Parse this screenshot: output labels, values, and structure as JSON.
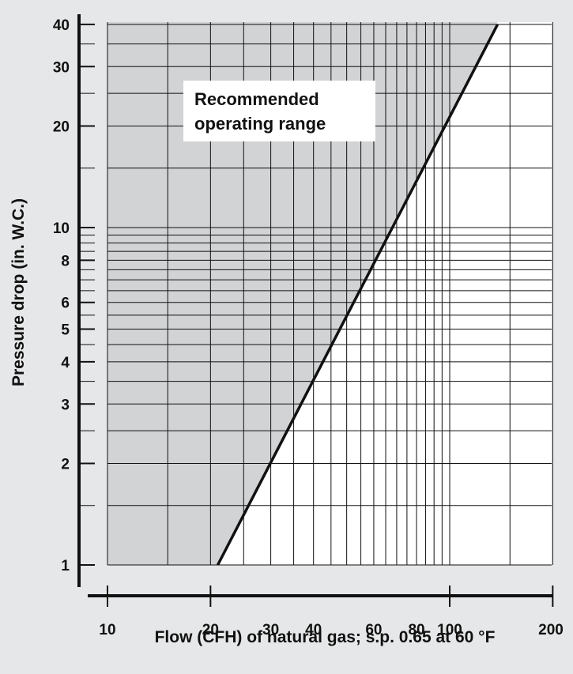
{
  "chart_data": {
    "type": "line",
    "title": "",
    "xlabel": "Flow (CFH) of natural gas; s.p. 0.65 at 60 °F",
    "ylabel": "Pressure drop (in. W.C.)",
    "x_scale": "log",
    "y_scale": "log",
    "xlim": [
      9,
      200
    ],
    "ylim": [
      1,
      40
    ],
    "x_tick_labels": [
      "10",
      "20",
      "30",
      "40",
      "60",
      "80",
      "100",
      "200"
    ],
    "x_tick_values": [
      10,
      20,
      30,
      40,
      60,
      80,
      100,
      200
    ],
    "y_tick_labels": [
      "1",
      "2",
      "3",
      "4",
      "5",
      "6",
      "8",
      "10",
      "20",
      "30",
      "40"
    ],
    "y_tick_values": [
      1,
      2,
      3,
      4,
      5,
      6,
      8,
      10,
      20,
      30,
      40
    ],
    "grid": true,
    "series": [
      {
        "x": [
          21,
          138
        ],
        "y": [
          1,
          40
        ]
      }
    ],
    "shaded_region": {
      "label_line1": "Recommended",
      "label_line2": "operating range",
      "color": "#d1d3d5"
    },
    "colors": {
      "background": "#e6e7e8",
      "plot_area": "#ffffff",
      "shade": "#d1d3d5",
      "line": "#111111"
    }
  }
}
